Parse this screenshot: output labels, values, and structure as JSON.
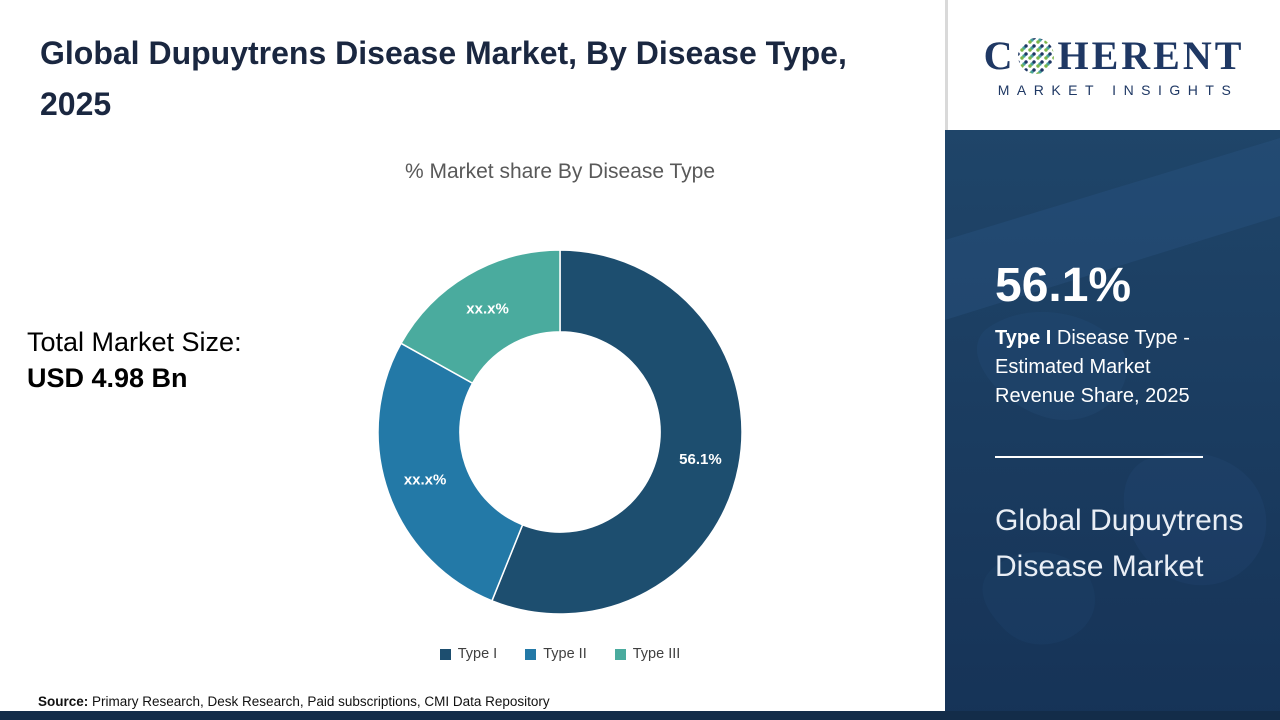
{
  "page": {
    "title": "Global Dupuytrens Disease Market, By Disease Type, 2025",
    "source_label": "Source:",
    "source_text": " Primary Research, Desk Research, Paid subscriptions, CMI Data Repository"
  },
  "market_size": {
    "label": "Total Market Size:",
    "value": "USD 4.98 Bn"
  },
  "chart_data": {
    "type": "pie",
    "subtype": "donut",
    "title": "% Market share By Disease Type",
    "categories": [
      "Type I",
      "Type II",
      "Type III"
    ],
    "values": [
      56.1,
      27.0,
      16.9
    ],
    "labels": [
      "56.1%",
      "xx.x%",
      "xx.x%"
    ],
    "colors": [
      "#1d4e6f",
      "#2379a7",
      "#4aab9e"
    ],
    "legend_position": "bottom",
    "inner_radius_ratio": 0.55,
    "start_angle_deg": 0
  },
  "sidebar": {
    "logo": {
      "text_start": "C",
      "text_end": "HERENT",
      "subtext": "MARKET INSIGHTS",
      "brand_navy": "#1f3864",
      "brand_teal": "#45a29b",
      "brand_green": "#7ab648"
    },
    "highlight": {
      "stat": "56.1%",
      "desc_bold": "Type I",
      "desc_rest": " Disease Type - Estimated Market Revenue Share, 2025",
      "footer_title": "Global Dupuytrens Disease Market"
    },
    "panel_navy": "#1b3d63"
  }
}
